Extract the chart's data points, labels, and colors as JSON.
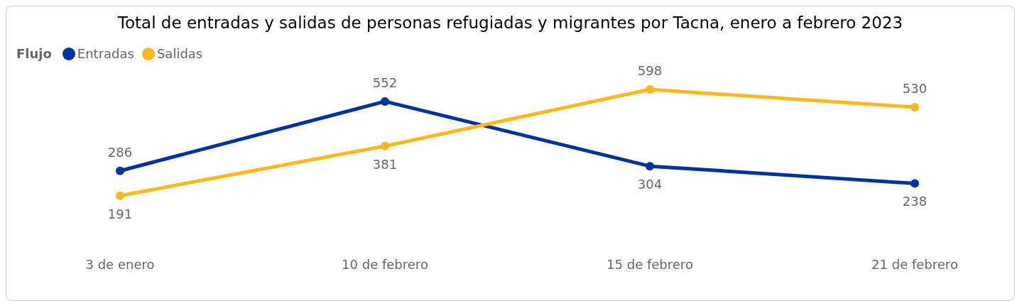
{
  "chart_data": {
    "type": "line",
    "title": "Total de entradas y salidas de personas refugiadas y migrantes por Tacna, enero a febrero 2023",
    "categories": [
      "3 de enero",
      "10 de febrero",
      "15 de febrero",
      "21 de febrero"
    ],
    "series": [
      {
        "name": "Entradas",
        "color": "#0033a0",
        "values": [
          286,
          552,
          304,
          238
        ]
      },
      {
        "name": "Salidas",
        "color": "#ffb81c",
        "values": [
          191,
          381,
          598,
          530
        ]
      }
    ],
    "legend_title": "Flujo",
    "legend": "top left",
    "data_labels": true,
    "marker": "circle",
    "line_style": "solid",
    "grid": false
  }
}
